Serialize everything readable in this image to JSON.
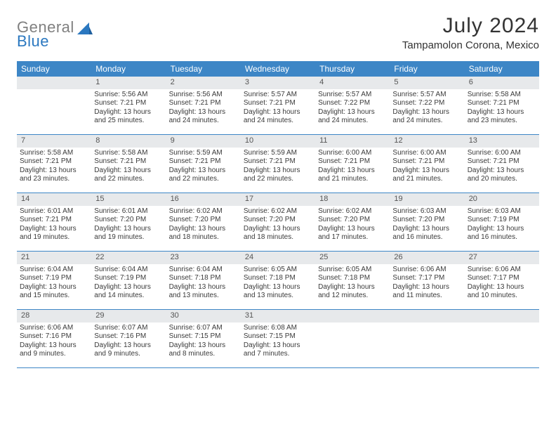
{
  "logo": {
    "part1": "General",
    "part2": "Blue"
  },
  "title": "July 2024",
  "location": "Tampamolon Corona, Mexico",
  "colors": {
    "header_bg": "#3d86c6",
    "daynum_bg": "#e7e9eb",
    "border": "#3d86c6",
    "text": "#3a3a3a",
    "logo_gray": "#808080",
    "logo_blue": "#2b78c0"
  },
  "day_names": [
    "Sunday",
    "Monday",
    "Tuesday",
    "Wednesday",
    "Thursday",
    "Friday",
    "Saturday"
  ],
  "weeks": [
    [
      {
        "n": "",
        "sr": "",
        "ss": "",
        "dl": ""
      },
      {
        "n": "1",
        "sr": "5:56 AM",
        "ss": "7:21 PM",
        "dl": "13 hours and 25 minutes."
      },
      {
        "n": "2",
        "sr": "5:56 AM",
        "ss": "7:21 PM",
        "dl": "13 hours and 24 minutes."
      },
      {
        "n": "3",
        "sr": "5:57 AM",
        "ss": "7:21 PM",
        "dl": "13 hours and 24 minutes."
      },
      {
        "n": "4",
        "sr": "5:57 AM",
        "ss": "7:22 PM",
        "dl": "13 hours and 24 minutes."
      },
      {
        "n": "5",
        "sr": "5:57 AM",
        "ss": "7:22 PM",
        "dl": "13 hours and 24 minutes."
      },
      {
        "n": "6",
        "sr": "5:58 AM",
        "ss": "7:21 PM",
        "dl": "13 hours and 23 minutes."
      }
    ],
    [
      {
        "n": "7",
        "sr": "5:58 AM",
        "ss": "7:21 PM",
        "dl": "13 hours and 23 minutes."
      },
      {
        "n": "8",
        "sr": "5:58 AM",
        "ss": "7:21 PM",
        "dl": "13 hours and 22 minutes."
      },
      {
        "n": "9",
        "sr": "5:59 AM",
        "ss": "7:21 PM",
        "dl": "13 hours and 22 minutes."
      },
      {
        "n": "10",
        "sr": "5:59 AM",
        "ss": "7:21 PM",
        "dl": "13 hours and 22 minutes."
      },
      {
        "n": "11",
        "sr": "6:00 AM",
        "ss": "7:21 PM",
        "dl": "13 hours and 21 minutes."
      },
      {
        "n": "12",
        "sr": "6:00 AM",
        "ss": "7:21 PM",
        "dl": "13 hours and 21 minutes."
      },
      {
        "n": "13",
        "sr": "6:00 AM",
        "ss": "7:21 PM",
        "dl": "13 hours and 20 minutes."
      }
    ],
    [
      {
        "n": "14",
        "sr": "6:01 AM",
        "ss": "7:21 PM",
        "dl": "13 hours and 19 minutes."
      },
      {
        "n": "15",
        "sr": "6:01 AM",
        "ss": "7:20 PM",
        "dl": "13 hours and 19 minutes."
      },
      {
        "n": "16",
        "sr": "6:02 AM",
        "ss": "7:20 PM",
        "dl": "13 hours and 18 minutes."
      },
      {
        "n": "17",
        "sr": "6:02 AM",
        "ss": "7:20 PM",
        "dl": "13 hours and 18 minutes."
      },
      {
        "n": "18",
        "sr": "6:02 AM",
        "ss": "7:20 PM",
        "dl": "13 hours and 17 minutes."
      },
      {
        "n": "19",
        "sr": "6:03 AM",
        "ss": "7:20 PM",
        "dl": "13 hours and 16 minutes."
      },
      {
        "n": "20",
        "sr": "6:03 AM",
        "ss": "7:19 PM",
        "dl": "13 hours and 16 minutes."
      }
    ],
    [
      {
        "n": "21",
        "sr": "6:04 AM",
        "ss": "7:19 PM",
        "dl": "13 hours and 15 minutes."
      },
      {
        "n": "22",
        "sr": "6:04 AM",
        "ss": "7:19 PM",
        "dl": "13 hours and 14 minutes."
      },
      {
        "n": "23",
        "sr": "6:04 AM",
        "ss": "7:18 PM",
        "dl": "13 hours and 13 minutes."
      },
      {
        "n": "24",
        "sr": "6:05 AM",
        "ss": "7:18 PM",
        "dl": "13 hours and 13 minutes."
      },
      {
        "n": "25",
        "sr": "6:05 AM",
        "ss": "7:18 PM",
        "dl": "13 hours and 12 minutes."
      },
      {
        "n": "26",
        "sr": "6:06 AM",
        "ss": "7:17 PM",
        "dl": "13 hours and 11 minutes."
      },
      {
        "n": "27",
        "sr": "6:06 AM",
        "ss": "7:17 PM",
        "dl": "13 hours and 10 minutes."
      }
    ],
    [
      {
        "n": "28",
        "sr": "6:06 AM",
        "ss": "7:16 PM",
        "dl": "13 hours and 9 minutes."
      },
      {
        "n": "29",
        "sr": "6:07 AM",
        "ss": "7:16 PM",
        "dl": "13 hours and 9 minutes."
      },
      {
        "n": "30",
        "sr": "6:07 AM",
        "ss": "7:15 PM",
        "dl": "13 hours and 8 minutes."
      },
      {
        "n": "31",
        "sr": "6:08 AM",
        "ss": "7:15 PM",
        "dl": "13 hours and 7 minutes."
      },
      {
        "n": "",
        "sr": "",
        "ss": "",
        "dl": ""
      },
      {
        "n": "",
        "sr": "",
        "ss": "",
        "dl": ""
      },
      {
        "n": "",
        "sr": "",
        "ss": "",
        "dl": ""
      }
    ]
  ],
  "labels": {
    "sunrise": "Sunrise:",
    "sunset": "Sunset:",
    "daylight": "Daylight:"
  }
}
